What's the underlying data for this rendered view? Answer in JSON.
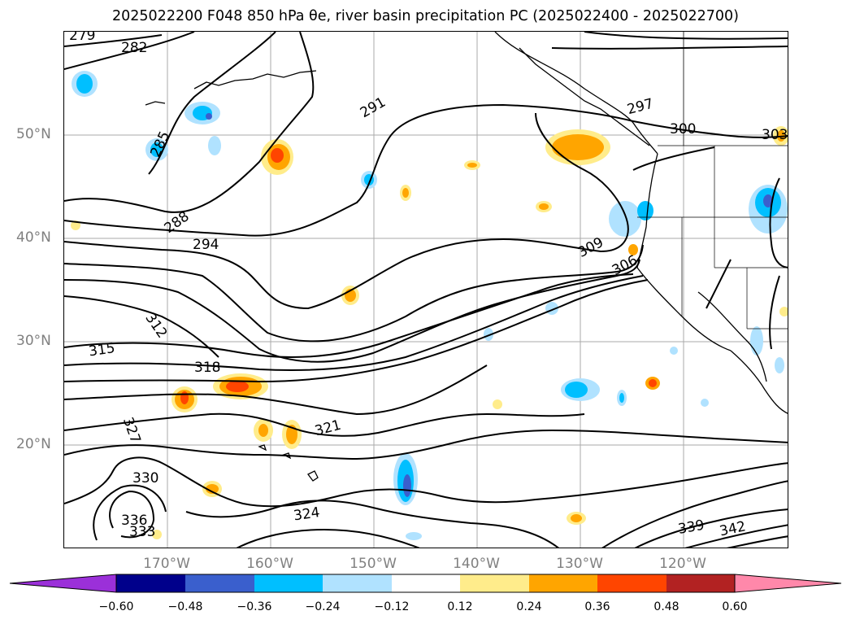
{
  "title": "2025022200 F048 850 hPa θe, river basin precipitation PC (2025022400 - 2025022700)",
  "map": {
    "lat_labels": [
      "50°N",
      "40°N",
      "30°N",
      "20°N"
    ],
    "lon_labels": [
      "170°W",
      "160°W",
      "150°W",
      "140°W",
      "130°W",
      "120°W"
    ],
    "contour_labels": [
      "279",
      "282",
      "285",
      "288",
      "291",
      "294",
      "297",
      "300",
      "303",
      "306",
      "309",
      "312",
      "315",
      "318",
      "321",
      "324",
      "327",
      "330",
      "333",
      "336",
      "339",
      "342"
    ]
  },
  "colorbar": {
    "ticks": [
      "−0.60",
      "−0.48",
      "−0.36",
      "−0.24",
      "−0.12",
      "0.12",
      "0.24",
      "0.36",
      "0.48",
      "0.60"
    ],
    "colors": [
      "#9b30d9",
      "#00008b",
      "#3a5fcd",
      "#00bfff",
      "#b0e2ff",
      "#ffffff",
      "#ffec8b",
      "#ffa500",
      "#ff4500",
      "#b22222",
      "#ff88aa"
    ]
  }
}
